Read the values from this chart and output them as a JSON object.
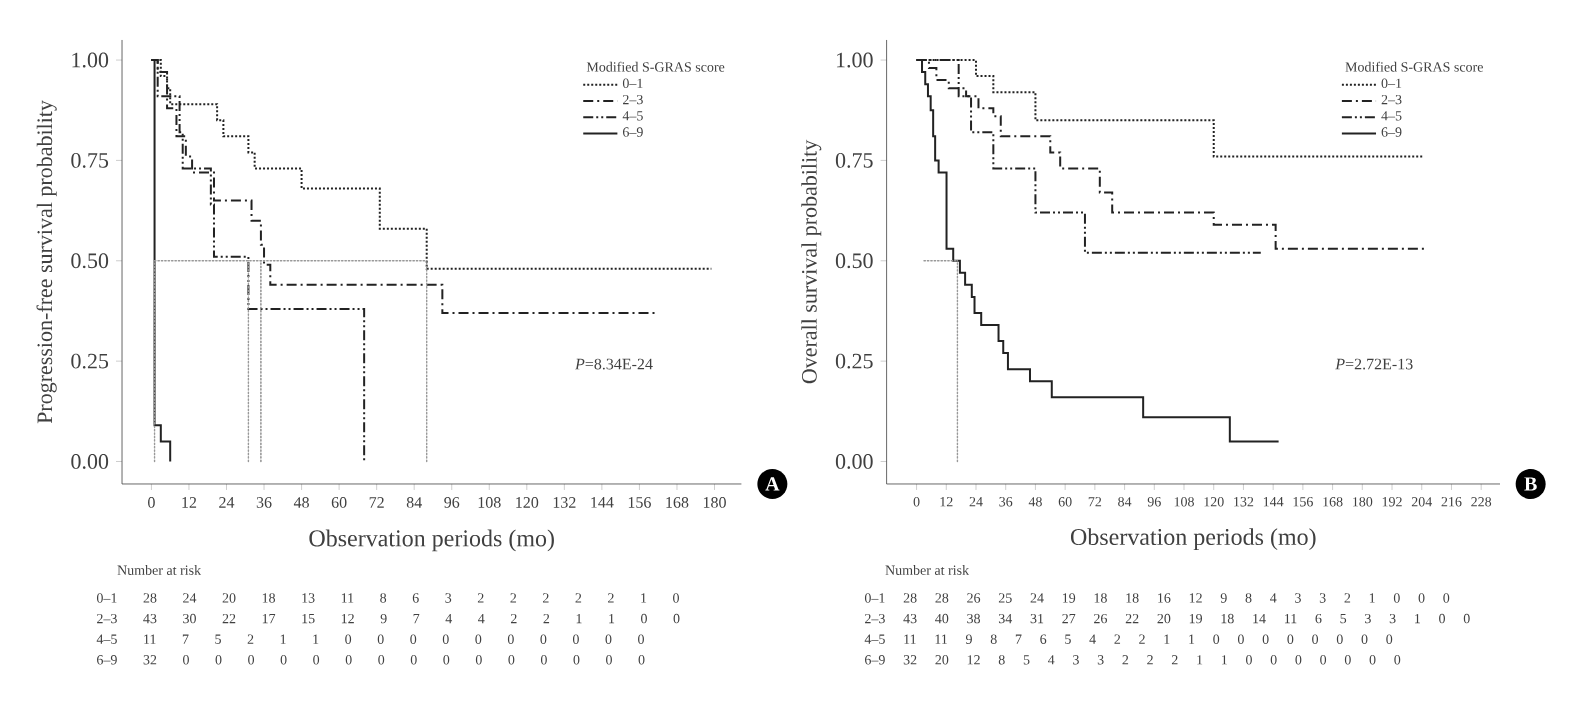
{
  "chart_data": [
    {
      "type": "step",
      "xlabel": "Observation periods (mo)",
      "ylabel": "Progression-free survival probability",
      "legend_title": "Modified S-GRAS score",
      "legend": "top right",
      "xlim": [
        -9.4,
        188.6
      ],
      "ylim": [
        -0.056,
        1.05
      ],
      "xticks": [
        0,
        12,
        24,
        36,
        48,
        60,
        72,
        84,
        96,
        108,
        120,
        132,
        144,
        156,
        168,
        180
      ],
      "yticks": [
        {
          "value": 0,
          "label": "0.00"
        },
        {
          "value": 0.25,
          "label": "0.25"
        },
        {
          "value": 0.5,
          "label": "0.50"
        },
        {
          "value": 0.75,
          "label": "0.75"
        },
        {
          "value": 1,
          "label": "1.00"
        }
      ],
      "series": [
        {
          "name": "0–1",
          "color": "#222222",
          "line_style": "dotted",
          "x": [
            0,
            3,
            5,
            6,
            21,
            23,
            31,
            33,
            48,
            73,
            88,
            179
          ],
          "values": [
            1,
            0.96,
            0.93,
            0.89,
            0.85,
            0.81,
            0.77,
            0.73,
            0.68,
            0.58,
            0.48,
            0.48
          ]
        },
        {
          "name": "2–3",
          "color": "#222222",
          "line_style": "dashdot",
          "x": [
            0,
            2,
            5,
            8,
            11,
            13,
            20,
            32,
            35,
            36,
            38,
            93,
            161
          ],
          "values": [
            1,
            0.97,
            0.88,
            0.81,
            0.76,
            0.72,
            0.65,
            0.6,
            0.54,
            0.49,
            0.44,
            0.37,
            0.37
          ]
        },
        {
          "name": "4–5",
          "color": "#222222",
          "line_style": "dashdotdot",
          "x": [
            0,
            2,
            9,
            10,
            19,
            20,
            31,
            68
          ],
          "values": [
            1,
            0.91,
            0.82,
            0.73,
            0.64,
            0.51,
            0.38,
            0
          ]
        },
        {
          "name": "6–9",
          "color": "#222222",
          "line_style": "solid",
          "x": [
            0,
            1,
            3,
            6
          ],
          "values": [
            1,
            0.09,
            0.05,
            0
          ]
        },
        {
          "type": "line",
          "color": "#999999",
          "line_style": "dotted",
          "x": [
            1,
            88
          ],
          "values": [
            0.5,
            0.5
          ]
        },
        {
          "type": "line",
          "color": "#999999",
          "line_style": "dotted",
          "x": [
            31,
            31
          ],
          "values": [
            0,
            0.5
          ]
        },
        {
          "type": "line",
          "color": "#888888",
          "line_style": "dotted",
          "x": [
            35,
            35
          ],
          "values": [
            0,
            0.5
          ]
        },
        {
          "type": "line",
          "color": "#999999",
          "line_style": "dotted",
          "x": [
            88,
            88
          ],
          "values": [
            0,
            0.5
          ]
        },
        {
          "type": "line",
          "color": "#999999",
          "line_style": "dotted",
          "x": [
            1,
            1
          ],
          "values": [
            0,
            0.5
          ]
        }
      ],
      "annotations": [
        "*P*=8.34E-24",
        "A",
        "Number at risk",
        "0–1 28 24 20 18 13 11 8 6 3 2 2 2 2 2 1 0",
        "2–3 43 30 22 17 15 12 9 7 4 4 2 2 1 1 0 0",
        "4–5 11 7 5 2 1 1 0 0 0 0 0 0 0 0 0 0",
        "6–9 32 0 0 0 0 0 0 0 0 0 0 0 0 0 0 0"
      ]
    },
    {
      "type": "step",
      "xlabel": "Observation periods (mo)",
      "ylabel": "Overall survival probability",
      "legend_title": "Modified S-GRAS score",
      "legend": "top right",
      "xlim": [
        -12.1,
        235.6
      ],
      "ylim": [
        -0.056,
        1.05
      ],
      "xticks": [
        0,
        12,
        24,
        36,
        48,
        60,
        72,
        84,
        96,
        108,
        120,
        132,
        144,
        156,
        168,
        180,
        192,
        204,
        216,
        228
      ],
      "yticks": [
        {
          "value": 0,
          "label": "0.00"
        },
        {
          "value": 0.25,
          "label": "0.25"
        },
        {
          "value": 0.5,
          "label": "0.50"
        },
        {
          "value": 0.75,
          "label": "0.75"
        },
        {
          "value": 1,
          "label": "1.00"
        }
      ],
      "series": [
        {
          "name": "0–1",
          "color": "#222222",
          "line_style": "dotted",
          "x": [
            0,
            24,
            31,
            48,
            120,
            205
          ],
          "values": [
            1,
            0.96,
            0.92,
            0.85,
            0.76,
            0.76
          ]
        },
        {
          "name": "2–3",
          "color": "#222222",
          "line_style": "dashdot",
          "x": [
            0,
            5,
            8,
            13,
            20,
            25,
            31,
            34,
            54,
            58,
            74,
            79,
            120,
            145,
            205
          ],
          "values": [
            1,
            0.98,
            0.95,
            0.93,
            0.91,
            0.88,
            0.86,
            0.81,
            0.77,
            0.73,
            0.67,
            0.62,
            0.59,
            0.53,
            0.53
          ]
        },
        {
          "name": "4–5",
          "color": "#222222",
          "line_style": "dashdotdot",
          "x": [
            0,
            17,
            22,
            31,
            48,
            68,
            139
          ],
          "values": [
            1,
            0.91,
            0.82,
            0.73,
            0.62,
            0.52,
            0.52
          ]
        },
        {
          "name": "6–9",
          "color": "#222222",
          "line_style": "solid",
          "x": [
            0,
            2.2,
            3.5,
            4.6,
            5.7,
            6.7,
            7.5,
            8.9,
            12.1,
            14.8,
            17.5,
            19.6,
            22.3,
            23.4,
            26.1,
            33.1,
            35,
            36.9,
            45.8,
            54.6,
            91.5,
            126.5,
            146.2
          ],
          "values": [
            1,
            0.97,
            0.94,
            0.91,
            0.875,
            0.81,
            0.75,
            0.72,
            0.53,
            0.5,
            0.47,
            0.44,
            0.41,
            0.37,
            0.34,
            0.3,
            0.27,
            0.23,
            0.2,
            0.16,
            0.11,
            0.05,
            0.05
          ]
        },
        {
          "type": "line",
          "color": "#999999",
          "line_style": "dotted",
          "x": [
            3,
            16.5
          ],
          "values": [
            0.5,
            0.5
          ]
        },
        {
          "type": "line",
          "color": "#999999",
          "line_style": "dotted",
          "x": [
            16.5,
            16.5
          ],
          "values": [
            0,
            0.5
          ]
        }
      ],
      "annotations": [
        "*P*=2.72E-13",
        "B",
        "Number at risk",
        "0–1 28 28 26 25 24 19 18 18 16 12 9 8 4 3 3 2 1 0 0 0",
        "2–3 43 40 38 34 31 27 26 22 20 19 18 14 11 6 5 3 3 1 0 0",
        "4–5 11 11 9 8 7 6 5 4 2 2 1 1 0 0 0 0 0 0 0 0",
        "6–9 32 20 12 8 5 4 3 3 2 2 2 1 1 0 0 0 0 0 0 0"
      ]
    }
  ]
}
